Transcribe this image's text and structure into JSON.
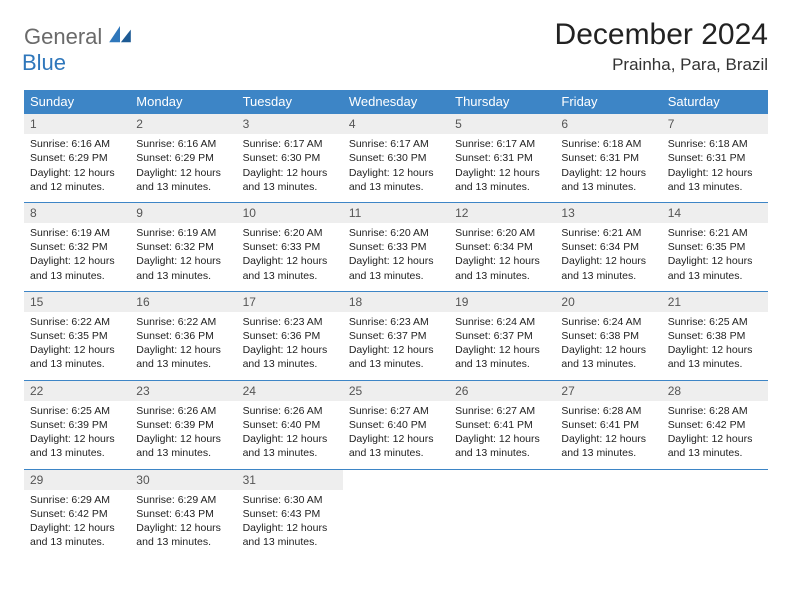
{
  "logo": {
    "general": "General",
    "blue": "Blue"
  },
  "title": "December 2024",
  "subtitle": "Prainha, Para, Brazil",
  "colors": {
    "header_bg": "#3d85c6",
    "header_text": "#ffffff",
    "daynum_bg": "#eeeeee",
    "row_border": "#3d85c6",
    "logo_gray": "#6a6a6a",
    "logo_blue": "#2f77bb"
  },
  "weekdays": [
    "Sunday",
    "Monday",
    "Tuesday",
    "Wednesday",
    "Thursday",
    "Friday",
    "Saturday"
  ],
  "weeks": [
    [
      {
        "n": "1",
        "sr": "Sunrise: 6:16 AM",
        "ss": "Sunset: 6:29 PM",
        "d1": "Daylight: 12 hours",
        "d2": "and 12 minutes."
      },
      {
        "n": "2",
        "sr": "Sunrise: 6:16 AM",
        "ss": "Sunset: 6:29 PM",
        "d1": "Daylight: 12 hours",
        "d2": "and 13 minutes."
      },
      {
        "n": "3",
        "sr": "Sunrise: 6:17 AM",
        "ss": "Sunset: 6:30 PM",
        "d1": "Daylight: 12 hours",
        "d2": "and 13 minutes."
      },
      {
        "n": "4",
        "sr": "Sunrise: 6:17 AM",
        "ss": "Sunset: 6:30 PM",
        "d1": "Daylight: 12 hours",
        "d2": "and 13 minutes."
      },
      {
        "n": "5",
        "sr": "Sunrise: 6:17 AM",
        "ss": "Sunset: 6:31 PM",
        "d1": "Daylight: 12 hours",
        "d2": "and 13 minutes."
      },
      {
        "n": "6",
        "sr": "Sunrise: 6:18 AM",
        "ss": "Sunset: 6:31 PM",
        "d1": "Daylight: 12 hours",
        "d2": "and 13 minutes."
      },
      {
        "n": "7",
        "sr": "Sunrise: 6:18 AM",
        "ss": "Sunset: 6:31 PM",
        "d1": "Daylight: 12 hours",
        "d2": "and 13 minutes."
      }
    ],
    [
      {
        "n": "8",
        "sr": "Sunrise: 6:19 AM",
        "ss": "Sunset: 6:32 PM",
        "d1": "Daylight: 12 hours",
        "d2": "and 13 minutes."
      },
      {
        "n": "9",
        "sr": "Sunrise: 6:19 AM",
        "ss": "Sunset: 6:32 PM",
        "d1": "Daylight: 12 hours",
        "d2": "and 13 minutes."
      },
      {
        "n": "10",
        "sr": "Sunrise: 6:20 AM",
        "ss": "Sunset: 6:33 PM",
        "d1": "Daylight: 12 hours",
        "d2": "and 13 minutes."
      },
      {
        "n": "11",
        "sr": "Sunrise: 6:20 AM",
        "ss": "Sunset: 6:33 PM",
        "d1": "Daylight: 12 hours",
        "d2": "and 13 minutes."
      },
      {
        "n": "12",
        "sr": "Sunrise: 6:20 AM",
        "ss": "Sunset: 6:34 PM",
        "d1": "Daylight: 12 hours",
        "d2": "and 13 minutes."
      },
      {
        "n": "13",
        "sr": "Sunrise: 6:21 AM",
        "ss": "Sunset: 6:34 PM",
        "d1": "Daylight: 12 hours",
        "d2": "and 13 minutes."
      },
      {
        "n": "14",
        "sr": "Sunrise: 6:21 AM",
        "ss": "Sunset: 6:35 PM",
        "d1": "Daylight: 12 hours",
        "d2": "and 13 minutes."
      }
    ],
    [
      {
        "n": "15",
        "sr": "Sunrise: 6:22 AM",
        "ss": "Sunset: 6:35 PM",
        "d1": "Daylight: 12 hours",
        "d2": "and 13 minutes."
      },
      {
        "n": "16",
        "sr": "Sunrise: 6:22 AM",
        "ss": "Sunset: 6:36 PM",
        "d1": "Daylight: 12 hours",
        "d2": "and 13 minutes."
      },
      {
        "n": "17",
        "sr": "Sunrise: 6:23 AM",
        "ss": "Sunset: 6:36 PM",
        "d1": "Daylight: 12 hours",
        "d2": "and 13 minutes."
      },
      {
        "n": "18",
        "sr": "Sunrise: 6:23 AM",
        "ss": "Sunset: 6:37 PM",
        "d1": "Daylight: 12 hours",
        "d2": "and 13 minutes."
      },
      {
        "n": "19",
        "sr": "Sunrise: 6:24 AM",
        "ss": "Sunset: 6:37 PM",
        "d1": "Daylight: 12 hours",
        "d2": "and 13 minutes."
      },
      {
        "n": "20",
        "sr": "Sunrise: 6:24 AM",
        "ss": "Sunset: 6:38 PM",
        "d1": "Daylight: 12 hours",
        "d2": "and 13 minutes."
      },
      {
        "n": "21",
        "sr": "Sunrise: 6:25 AM",
        "ss": "Sunset: 6:38 PM",
        "d1": "Daylight: 12 hours",
        "d2": "and 13 minutes."
      }
    ],
    [
      {
        "n": "22",
        "sr": "Sunrise: 6:25 AM",
        "ss": "Sunset: 6:39 PM",
        "d1": "Daylight: 12 hours",
        "d2": "and 13 minutes."
      },
      {
        "n": "23",
        "sr": "Sunrise: 6:26 AM",
        "ss": "Sunset: 6:39 PM",
        "d1": "Daylight: 12 hours",
        "d2": "and 13 minutes."
      },
      {
        "n": "24",
        "sr": "Sunrise: 6:26 AM",
        "ss": "Sunset: 6:40 PM",
        "d1": "Daylight: 12 hours",
        "d2": "and 13 minutes."
      },
      {
        "n": "25",
        "sr": "Sunrise: 6:27 AM",
        "ss": "Sunset: 6:40 PM",
        "d1": "Daylight: 12 hours",
        "d2": "and 13 minutes."
      },
      {
        "n": "26",
        "sr": "Sunrise: 6:27 AM",
        "ss": "Sunset: 6:41 PM",
        "d1": "Daylight: 12 hours",
        "d2": "and 13 minutes."
      },
      {
        "n": "27",
        "sr": "Sunrise: 6:28 AM",
        "ss": "Sunset: 6:41 PM",
        "d1": "Daylight: 12 hours",
        "d2": "and 13 minutes."
      },
      {
        "n": "28",
        "sr": "Sunrise: 6:28 AM",
        "ss": "Sunset: 6:42 PM",
        "d1": "Daylight: 12 hours",
        "d2": "and 13 minutes."
      }
    ],
    [
      {
        "n": "29",
        "sr": "Sunrise: 6:29 AM",
        "ss": "Sunset: 6:42 PM",
        "d1": "Daylight: 12 hours",
        "d2": "and 13 minutes."
      },
      {
        "n": "30",
        "sr": "Sunrise: 6:29 AM",
        "ss": "Sunset: 6:43 PM",
        "d1": "Daylight: 12 hours",
        "d2": "and 13 minutes."
      },
      {
        "n": "31",
        "sr": "Sunrise: 6:30 AM",
        "ss": "Sunset: 6:43 PM",
        "d1": "Daylight: 12 hours",
        "d2": "and 13 minutes."
      },
      null,
      null,
      null,
      null
    ]
  ]
}
